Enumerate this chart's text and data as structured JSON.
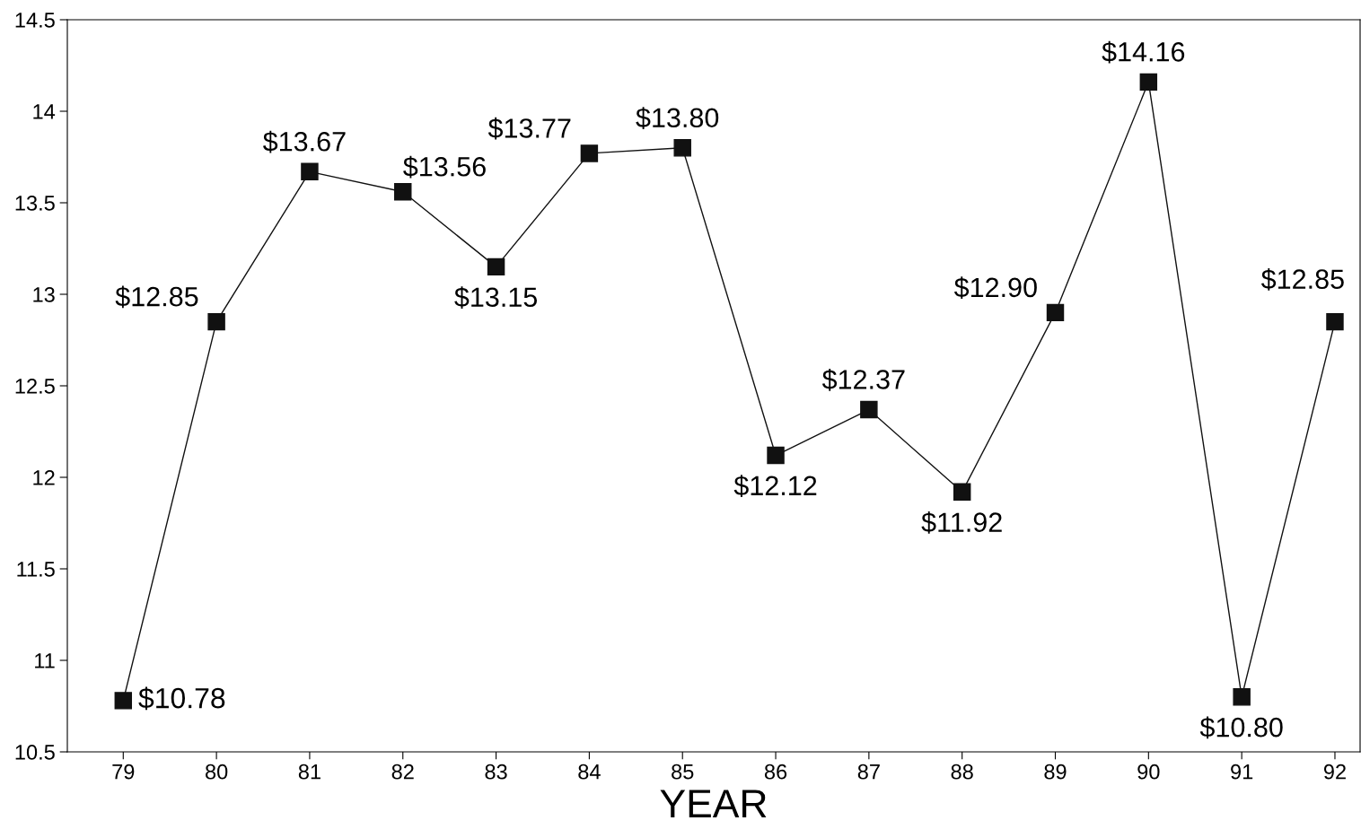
{
  "chart_data": {
    "type": "line",
    "xlabel": "YEAR",
    "categories": [
      "79",
      "80",
      "81",
      "82",
      "83",
      "84",
      "85",
      "86",
      "87",
      "88",
      "89",
      "90",
      "91",
      "92"
    ],
    "values": [
      10.78,
      12.85,
      13.67,
      13.56,
      13.15,
      13.77,
      13.8,
      12.12,
      12.37,
      11.92,
      12.9,
      14.16,
      10.8,
      12.85
    ],
    "value_labels": [
      "$10.78",
      "$12.85",
      "$13.67",
      "$13.56",
      "$13.15",
      "$13.77",
      "$13.80",
      "$12.12",
      "$12.37",
      "$11.92",
      "$12.90",
      "$14.16",
      "$10.80",
      "$12.85"
    ],
    "color": "#111111",
    "marker": "square",
    "line_style": "solid",
    "ylim": [
      10.5,
      14.5
    ],
    "yticks": [
      10.5,
      11,
      11.5,
      12,
      12.5,
      13,
      13.5,
      14,
      14.5
    ],
    "grid": false,
    "legend": false
  }
}
